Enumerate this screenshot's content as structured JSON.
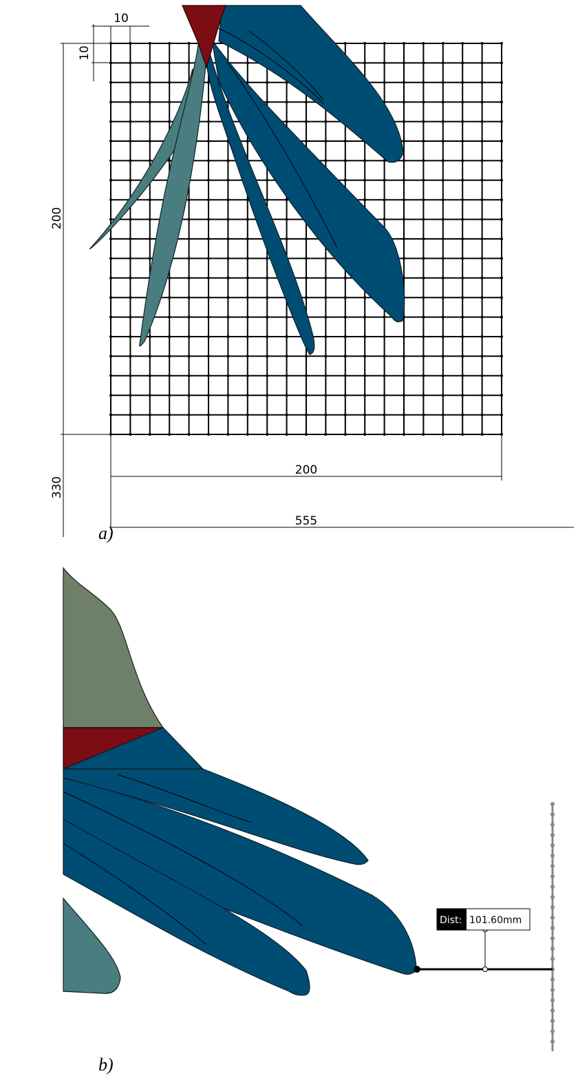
{
  "panel_a": {
    "label": "a)",
    "dimensions": {
      "cell_width": "10",
      "cell_height": "10",
      "grid_height": "200",
      "grid_width": "200",
      "offset_y": "330",
      "offset_x": "555"
    }
  },
  "panel_b": {
    "label": "b)",
    "measurement": {
      "label": "Dist:",
      "value": "101.60mm"
    }
  }
}
